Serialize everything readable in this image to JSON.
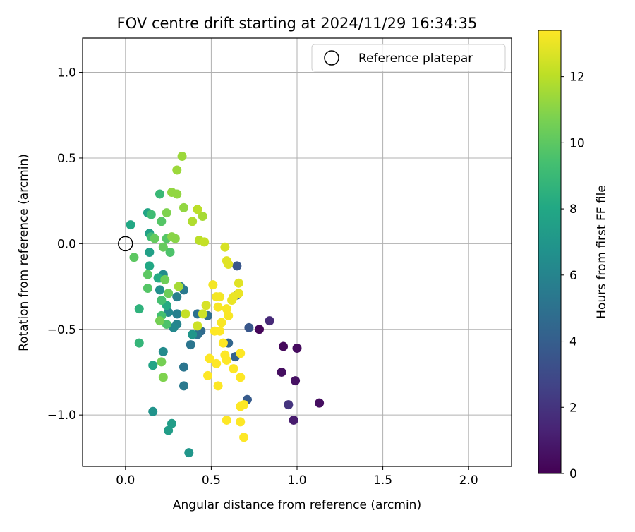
{
  "chart_data": {
    "type": "scatter",
    "title": "FOV centre drift starting at 2024/11/29 16:34:35",
    "xlabel": "Angular distance from reference (arcmin)",
    "ylabel": "Rotation from reference (arcmin)",
    "xlim": [
      -0.25,
      2.25
    ],
    "ylim": [
      -1.3,
      1.2
    ],
    "xticks": [
      0.0,
      0.5,
      1.0,
      1.5,
      2.0
    ],
    "xtick_labels": [
      "0.0",
      "0.5",
      "1.0",
      "1.5",
      "2.0"
    ],
    "yticks": [
      -1.0,
      -0.5,
      0.0,
      0.5,
      1.0
    ],
    "ytick_labels": [
      "−1.0",
      "−0.5",
      "0.0",
      "0.5",
      "1.0"
    ],
    "grid": true,
    "colormap": "viridis",
    "colorbar": {
      "label": "Hours from first FF file",
      "range": [
        0,
        13.4
      ],
      "ticks": [
        0,
        2,
        4,
        6,
        8,
        10,
        12
      ],
      "tick_labels": [
        "0",
        "2",
        "4",
        "6",
        "8",
        "10",
        "12"
      ]
    },
    "legend": {
      "position": "top-right",
      "label": "Reference platepar"
    },
    "reference_point": {
      "x": 0.0,
      "y": 0.0
    },
    "points": [
      {
        "x": 0.78,
        "y": -0.5,
        "h": 0.2
      },
      {
        "x": 0.92,
        "y": -0.6,
        "h": 0.3
      },
      {
        "x": 1.0,
        "y": -0.61,
        "h": 0.4
      },
      {
        "x": 0.91,
        "y": -0.75,
        "h": 0.5
      },
      {
        "x": 0.99,
        "y": -0.8,
        "h": 0.6
      },
      {
        "x": 1.13,
        "y": -0.93,
        "h": 0.5
      },
      {
        "x": 0.98,
        "y": -1.03,
        "h": 1.0
      },
      {
        "x": 0.84,
        "y": -0.45,
        "h": 1.6
      },
      {
        "x": 0.95,
        "y": -0.94,
        "h": 2.0
      },
      {
        "x": 0.72,
        "y": -0.49,
        "h": 3.6
      },
      {
        "x": 0.71,
        "y": -0.91,
        "h": 3.8
      },
      {
        "x": 0.65,
        "y": -0.13,
        "h": 3.6
      },
      {
        "x": 0.65,
        "y": -0.3,
        "h": 4.0
      },
      {
        "x": 0.64,
        "y": -0.66,
        "h": 4.2
      },
      {
        "x": 0.6,
        "y": -0.58,
        "h": 4.4
      },
      {
        "x": 0.44,
        "y": -0.51,
        "h": 4.6
      },
      {
        "x": 0.48,
        "y": -0.42,
        "h": 4.8
      },
      {
        "x": 0.42,
        "y": -0.53,
        "h": 5.0
      },
      {
        "x": 0.42,
        "y": -0.41,
        "h": 5.0
      },
      {
        "x": 0.38,
        "y": -0.59,
        "h": 5.2
      },
      {
        "x": 0.34,
        "y": -0.72,
        "h": 5.2
      },
      {
        "x": 0.34,
        "y": -0.83,
        "h": 5.4
      },
      {
        "x": 0.34,
        "y": -0.27,
        "h": 5.4
      },
      {
        "x": 0.32,
        "y": -0.25,
        "h": 5.6
      },
      {
        "x": 0.3,
        "y": -0.31,
        "h": 5.8
      },
      {
        "x": 0.3,
        "y": -0.41,
        "h": 5.8
      },
      {
        "x": 0.3,
        "y": -0.47,
        "h": 6.0
      },
      {
        "x": 0.28,
        "y": -0.49,
        "h": 6.2
      },
      {
        "x": 0.25,
        "y": -0.4,
        "h": 6.2
      },
      {
        "x": 0.22,
        "y": -0.63,
        "h": 6.4
      },
      {
        "x": 0.22,
        "y": -0.18,
        "h": 6.4
      },
      {
        "x": 0.2,
        "y": -0.2,
        "h": 6.6
      },
      {
        "x": 0.2,
        "y": -0.27,
        "h": 6.6
      },
      {
        "x": 0.16,
        "y": -0.98,
        "h": 6.8
      },
      {
        "x": 0.37,
        "y": -1.22,
        "h": 7.0
      },
      {
        "x": 0.39,
        "y": -0.53,
        "h": 7.0
      },
      {
        "x": 0.27,
        "y": -1.05,
        "h": 7.4
      },
      {
        "x": 0.25,
        "y": -1.09,
        "h": 7.4
      },
      {
        "x": 0.14,
        "y": -0.05,
        "h": 7.6
      },
      {
        "x": 0.14,
        "y": 0.06,
        "h": 7.6
      },
      {
        "x": 0.13,
        "y": 0.18,
        "h": 7.8
      },
      {
        "x": 0.16,
        "y": -0.71,
        "h": 7.8
      },
      {
        "x": 0.14,
        "y": -0.13,
        "h": 8.0
      },
      {
        "x": 0.03,
        "y": 0.11,
        "h": 8.0
      },
      {
        "x": 0.19,
        "y": -0.2,
        "h": 8.2
      },
      {
        "x": 0.24,
        "y": -0.36,
        "h": 8.2
      },
      {
        "x": 0.25,
        "y": -0.29,
        "h": 8.6
      },
      {
        "x": 0.08,
        "y": -0.38,
        "h": 8.6
      },
      {
        "x": 0.08,
        "y": -0.58,
        "h": 8.8
      },
      {
        "x": 0.2,
        "y": 0.29,
        "h": 9.0
      },
      {
        "x": 0.15,
        "y": 0.17,
        "h": 9.2
      },
      {
        "x": 0.15,
        "y": 0.04,
        "h": 9.2
      },
      {
        "x": 0.21,
        "y": -0.33,
        "h": 9.4
      },
      {
        "x": 0.21,
        "y": -0.42,
        "h": 9.4
      },
      {
        "x": 0.24,
        "y": -0.47,
        "h": 9.6
      },
      {
        "x": 0.26,
        "y": -0.05,
        "h": 9.6
      },
      {
        "x": 0.24,
        "y": 0.03,
        "h": 9.8
      },
      {
        "x": 0.21,
        "y": 0.13,
        "h": 9.8
      },
      {
        "x": 0.13,
        "y": -0.26,
        "h": 9.8
      },
      {
        "x": 0.13,
        "y": -0.18,
        "h": 10.0
      },
      {
        "x": 0.05,
        "y": -0.08,
        "h": 10.0
      },
      {
        "x": 0.17,
        "y": 0.03,
        "h": 10.2
      },
      {
        "x": 0.22,
        "y": -0.02,
        "h": 10.2
      },
      {
        "x": 0.23,
        "y": -0.21,
        "h": 10.4
      },
      {
        "x": 0.25,
        "y": -0.29,
        "h": 10.4
      },
      {
        "x": 0.2,
        "y": -0.45,
        "h": 10.6
      },
      {
        "x": 0.21,
        "y": -0.69,
        "h": 10.6
      },
      {
        "x": 0.22,
        "y": -0.78,
        "h": 10.8
      },
      {
        "x": 0.24,
        "y": 0.18,
        "h": 10.8
      },
      {
        "x": 0.27,
        "y": 0.04,
        "h": 11.0
      },
      {
        "x": 0.29,
        "y": 0.03,
        "h": 11.0
      },
      {
        "x": 0.27,
        "y": 0.3,
        "h": 11.2
      },
      {
        "x": 0.3,
        "y": 0.29,
        "h": 11.2
      },
      {
        "x": 0.34,
        "y": 0.21,
        "h": 11.2
      },
      {
        "x": 0.33,
        "y": 0.51,
        "h": 11.4
      },
      {
        "x": 0.3,
        "y": 0.43,
        "h": 11.4
      },
      {
        "x": 0.31,
        "y": -0.25,
        "h": 11.6
      },
      {
        "x": 0.45,
        "y": 0.16,
        "h": 11.6
      },
      {
        "x": 0.39,
        "y": 0.13,
        "h": 11.8
      },
      {
        "x": 0.42,
        "y": 0.2,
        "h": 12.0
      },
      {
        "x": 0.43,
        "y": 0.02,
        "h": 12.0
      },
      {
        "x": 0.46,
        "y": 0.01,
        "h": 12.2
      },
      {
        "x": 0.35,
        "y": -0.41,
        "h": 12.2
      },
      {
        "x": 0.42,
        "y": -0.48,
        "h": 12.4
      },
      {
        "x": 0.45,
        "y": -0.41,
        "h": 12.4
      },
      {
        "x": 0.47,
        "y": -0.36,
        "h": 12.6
      },
      {
        "x": 0.58,
        "y": -0.02,
        "h": 12.6
      },
      {
        "x": 0.59,
        "y": -0.1,
        "h": 12.8
      },
      {
        "x": 0.6,
        "y": -0.12,
        "h": 12.8
      },
      {
        "x": 0.66,
        "y": -0.23,
        "h": 12.8
      },
      {
        "x": 0.66,
        "y": -0.29,
        "h": 13.0
      },
      {
        "x": 0.63,
        "y": -0.31,
        "h": 13.0
      },
      {
        "x": 0.62,
        "y": -0.33,
        "h": 13.0
      },
      {
        "x": 0.51,
        "y": -0.24,
        "h": 13.2
      },
      {
        "x": 0.53,
        "y": -0.31,
        "h": 13.2
      },
      {
        "x": 0.55,
        "y": -0.31,
        "h": 13.2
      },
      {
        "x": 0.54,
        "y": -0.37,
        "h": 13.3
      },
      {
        "x": 0.59,
        "y": -0.38,
        "h": 13.3
      },
      {
        "x": 0.6,
        "y": -0.42,
        "h": 13.3
      },
      {
        "x": 0.56,
        "y": -0.46,
        "h": 13.3
      },
      {
        "x": 0.52,
        "y": -0.51,
        "h": 13.4
      },
      {
        "x": 0.55,
        "y": -0.51,
        "h": 13.4
      },
      {
        "x": 0.57,
        "y": -0.58,
        "h": 13.4
      },
      {
        "x": 0.58,
        "y": -0.65,
        "h": 13.4
      },
      {
        "x": 0.59,
        "y": -0.68,
        "h": 13.4
      },
      {
        "x": 0.49,
        "y": -0.67,
        "h": 13.4
      },
      {
        "x": 0.53,
        "y": -0.7,
        "h": 13.4
      },
      {
        "x": 0.48,
        "y": -0.77,
        "h": 13.4
      },
      {
        "x": 0.54,
        "y": -0.83,
        "h": 13.4
      },
      {
        "x": 0.63,
        "y": -0.73,
        "h": 13.4
      },
      {
        "x": 0.67,
        "y": -0.64,
        "h": 13.4
      },
      {
        "x": 0.67,
        "y": -0.78,
        "h": 13.4
      },
      {
        "x": 0.67,
        "y": -0.95,
        "h": 13.4
      },
      {
        "x": 0.69,
        "y": -0.94,
        "h": 13.4
      },
      {
        "x": 0.59,
        "y": -1.03,
        "h": 13.4
      },
      {
        "x": 0.67,
        "y": -1.04,
        "h": 13.4
      },
      {
        "x": 0.69,
        "y": -1.13,
        "h": 13.4
      }
    ]
  }
}
